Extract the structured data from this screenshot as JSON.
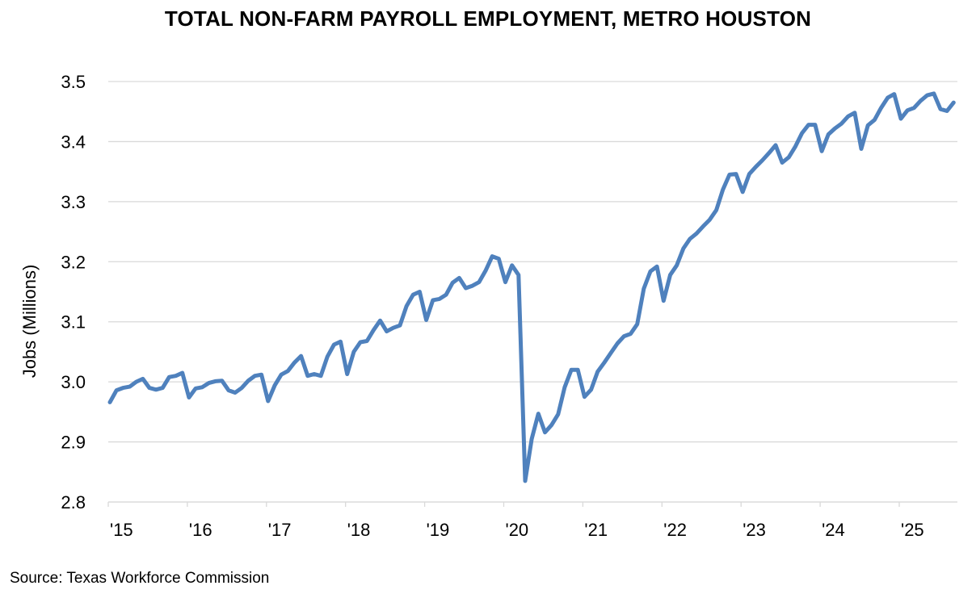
{
  "chart_data": {
    "type": "line",
    "title": "TOTAL NON-FARM PAYROLL EMPLOYMENT, METRO HOUSTON",
    "xlabel": "",
    "ylabel": "Jobs (Millions)",
    "ylim": [
      2.8,
      3.5
    ],
    "yticks": [
      "2.8",
      "2.9",
      "3.0",
      "3.1",
      "3.2",
      "3.3",
      "3.4",
      "3.5"
    ],
    "xticks": [
      "'15",
      "'16",
      "'17",
      "'18",
      "'19",
      "'20",
      "'21",
      "'22",
      "'23",
      "'24",
      "'25"
    ],
    "grid": "horizontal",
    "line_color": "#4f81bd",
    "series": [
      {
        "x_start": "2015-01",
        "frequency": "monthly",
        "values": [
          2.966,
          2.986,
          2.99,
          2.992,
          3.0,
          3.005,
          2.99,
          2.987,
          2.99,
          3.008,
          3.01,
          3.015,
          2.974,
          2.989,
          2.991,
          2.998,
          3.001,
          3.002,
          2.986,
          2.982,
          2.99,
          3.002,
          3.01,
          3.012,
          2.968,
          2.994,
          3.012,
          3.018,
          3.032,
          3.043,
          3.01,
          3.013,
          3.01,
          3.042,
          3.062,
          3.067,
          3.013,
          3.05,
          3.066,
          3.068,
          3.086,
          3.102,
          3.084,
          3.09,
          3.094,
          3.126,
          3.145,
          3.15,
          3.103,
          3.136,
          3.138,
          3.145,
          3.165,
          3.173,
          3.156,
          3.16,
          3.166,
          3.185,
          3.209,
          3.205,
          3.166,
          3.194,
          3.178,
          2.835,
          2.905,
          2.947,
          2.916,
          2.928,
          2.946,
          2.991,
          3.02,
          3.02,
          2.975,
          2.987,
          3.017,
          3.032,
          3.048,
          3.064,
          3.076,
          3.08,
          3.096,
          3.155,
          3.184,
          3.192,
          3.135,
          3.178,
          3.194,
          3.222,
          3.238,
          3.247,
          3.259,
          3.27,
          3.286,
          3.32,
          3.345,
          3.346,
          3.316,
          3.346,
          3.358,
          3.369,
          3.381,
          3.394,
          3.365,
          3.374,
          3.392,
          3.414,
          3.428,
          3.428,
          3.384,
          3.412,
          3.422,
          3.43,
          3.442,
          3.448,
          3.388,
          3.427,
          3.436,
          3.456,
          3.473,
          3.479,
          3.438,
          3.452,
          3.456,
          3.468,
          3.477,
          3.48,
          3.454,
          3.451,
          3.465
        ]
      }
    ]
  },
  "footer": {
    "source": "Source: Texas Workforce Commission"
  }
}
